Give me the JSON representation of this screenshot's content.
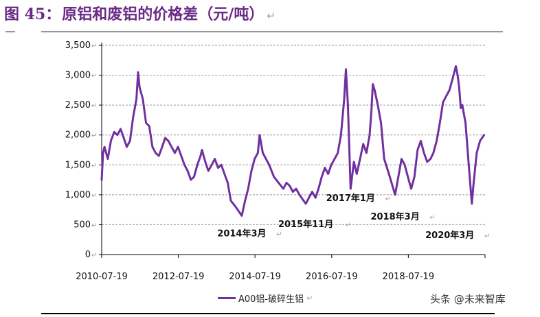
{
  "title": {
    "figure_label": "图 45：",
    "text": "原铝和废铝的价格差（元/吨）",
    "return_mark": "↵"
  },
  "watermark": "头条 @未来智库",
  "colors": {
    "series": "#7030a0",
    "title": "#6a2a86",
    "grid": "#9a9a9a"
  },
  "chart_data": {
    "type": "line",
    "title": "原铝和废铝的价格差（元/吨）",
    "xlabel": "",
    "ylabel": "",
    "ylim": [
      0,
      3500
    ],
    "yticks": [
      0,
      500,
      1000,
      1500,
      2000,
      2500,
      3000,
      3500
    ],
    "ytick_labels": [
      "0",
      "500",
      "1,000",
      "1,500",
      "2,000",
      "2,500",
      "3,000",
      "3,500"
    ],
    "xlim": [
      "2010-07-19",
      "2020-07-19"
    ],
    "xticks": [
      "2010-07-19",
      "2012-07-19",
      "2014-07-19",
      "2016-07-19",
      "2018-07-19"
    ],
    "grid": "horizontal dashed",
    "legend_position": "bottom",
    "series": [
      {
        "name": "A00铝-破碎生铝",
        "points": [
          [
            "2010-07-19",
            1250
          ],
          [
            "2010-08-01",
            1700
          ],
          [
            "2010-08-15",
            1800
          ],
          [
            "2010-09-15",
            1600
          ],
          [
            "2010-10-15",
            1900
          ],
          [
            "2010-11-15",
            2050
          ],
          [
            "2010-12-15",
            2000
          ],
          [
            "2011-01-15",
            2100
          ],
          [
            "2011-02-15",
            1950
          ],
          [
            "2011-03-15",
            1800
          ],
          [
            "2011-04-15",
            1900
          ],
          [
            "2011-05-15",
            2300
          ],
          [
            "2011-06-15",
            2600
          ],
          [
            "2011-07-01",
            3050
          ],
          [
            "2011-07-15",
            2800
          ],
          [
            "2011-08-15",
            2600
          ],
          [
            "2011-09-15",
            2200
          ],
          [
            "2011-10-15",
            2150
          ],
          [
            "2011-11-15",
            1800
          ],
          [
            "2011-12-15",
            1700
          ],
          [
            "2012-01-15",
            1650
          ],
          [
            "2012-02-15",
            1800
          ],
          [
            "2012-03-15",
            1950
          ],
          [
            "2012-04-15",
            1900
          ],
          [
            "2012-05-15",
            1800
          ],
          [
            "2012-06-15",
            1700
          ],
          [
            "2012-07-15",
            1800
          ],
          [
            "2012-08-15",
            1650
          ],
          [
            "2012-09-15",
            1500
          ],
          [
            "2012-10-15",
            1400
          ],
          [
            "2012-11-15",
            1250
          ],
          [
            "2012-12-15",
            1300
          ],
          [
            "2013-01-15",
            1500
          ],
          [
            "2013-02-15",
            1650
          ],
          [
            "2013-03-01",
            1750
          ],
          [
            "2013-04-01",
            1550
          ],
          [
            "2013-05-01",
            1400
          ],
          [
            "2013-06-01",
            1500
          ],
          [
            "2013-07-01",
            1600
          ],
          [
            "2013-08-01",
            1450
          ],
          [
            "2013-09-01",
            1500
          ],
          [
            "2013-10-01",
            1350
          ],
          [
            "2013-11-01",
            1200
          ],
          [
            "2013-12-01",
            900
          ],
          [
            "2014-01-15",
            800
          ],
          [
            "2014-03-15",
            650
          ],
          [
            "2014-04-15",
            900
          ],
          [
            "2014-05-15",
            1100
          ],
          [
            "2014-06-15",
            1400
          ],
          [
            "2014-07-15",
            1600
          ],
          [
            "2014-08-15",
            1700
          ],
          [
            "2014-09-01",
            2000
          ],
          [
            "2014-10-01",
            1700
          ],
          [
            "2014-11-01",
            1600
          ],
          [
            "2014-12-01",
            1500
          ],
          [
            "2015-01-15",
            1300
          ],
          [
            "2015-03-01",
            1200
          ],
          [
            "2015-04-15",
            1100
          ],
          [
            "2015-05-15",
            1200
          ],
          [
            "2015-06-15",
            1150
          ],
          [
            "2015-07-15",
            1050
          ],
          [
            "2015-08-15",
            1100
          ],
          [
            "2015-09-15",
            1000
          ],
          [
            "2015-11-15",
            850
          ],
          [
            "2015-12-15",
            950
          ],
          [
            "2016-01-15",
            1050
          ],
          [
            "2016-02-15",
            950
          ],
          [
            "2016-03-15",
            1100
          ],
          [
            "2016-04-15",
            1300
          ],
          [
            "2016-05-15",
            1450
          ],
          [
            "2016-06-15",
            1350
          ],
          [
            "2016-07-15",
            1500
          ],
          [
            "2016-08-15",
            1600
          ],
          [
            "2016-09-15",
            1700
          ],
          [
            "2016-10-15",
            2000
          ],
          [
            "2016-11-15",
            2600
          ],
          [
            "2016-12-01",
            3100
          ],
          [
            "2016-12-20",
            2500
          ],
          [
            "2017-01-15",
            1100
          ],
          [
            "2017-02-15",
            1550
          ],
          [
            "2017-03-15",
            1350
          ],
          [
            "2017-04-15",
            1600
          ],
          [
            "2017-05-15",
            1850
          ],
          [
            "2017-06-15",
            1700
          ],
          [
            "2017-07-15",
            2000
          ],
          [
            "2017-08-01",
            2400
          ],
          [
            "2017-08-15",
            2850
          ],
          [
            "2017-09-01",
            2750
          ],
          [
            "2017-10-01",
            2500
          ],
          [
            "2017-11-01",
            2200
          ],
          [
            "2017-12-01",
            1600
          ],
          [
            "2018-01-15",
            1350
          ],
          [
            "2018-03-15",
            1000
          ],
          [
            "2018-04-15",
            1300
          ],
          [
            "2018-05-15",
            1600
          ],
          [
            "2018-06-15",
            1500
          ],
          [
            "2018-07-15",
            1300
          ],
          [
            "2018-08-15",
            1100
          ],
          [
            "2018-09-15",
            1300
          ],
          [
            "2018-10-15",
            1750
          ],
          [
            "2018-11-15",
            1900
          ],
          [
            "2018-12-15",
            1700
          ],
          [
            "2019-01-15",
            1550
          ],
          [
            "2019-02-15",
            1600
          ],
          [
            "2019-03-15",
            1700
          ],
          [
            "2019-04-15",
            1900
          ],
          [
            "2019-05-15",
            2200
          ],
          [
            "2019-06-15",
            2550
          ],
          [
            "2019-07-15",
            2650
          ],
          [
            "2019-08-15",
            2750
          ],
          [
            "2019-09-15",
            2950
          ],
          [
            "2019-10-15",
            3150
          ],
          [
            "2019-11-01",
            3000
          ],
          [
            "2019-11-15",
            2800
          ],
          [
            "2019-12-01",
            2450
          ],
          [
            "2019-12-15",
            2500
          ],
          [
            "2020-01-15",
            2200
          ],
          [
            "2020-02-15",
            1500
          ],
          [
            "2020-03-15",
            850
          ],
          [
            "2020-04-01",
            1200
          ],
          [
            "2020-05-01",
            1700
          ],
          [
            "2020-06-01",
            1900
          ],
          [
            "2020-07-10",
            2000
          ]
        ]
      }
    ],
    "annotations": [
      {
        "text": "2014年3月",
        "date": "2014-03-15",
        "y": 650
      },
      {
        "text": "2015年11月",
        "date": "2015-11-15",
        "y": 850
      },
      {
        "text": "2017年1月",
        "date": "2017-01-15",
        "y": 1100
      },
      {
        "text": "2018年3月",
        "date": "2018-03-15",
        "y": 1000
      },
      {
        "text": "2020年3月",
        "date": "2020-03-15",
        "y": 850
      }
    ]
  }
}
